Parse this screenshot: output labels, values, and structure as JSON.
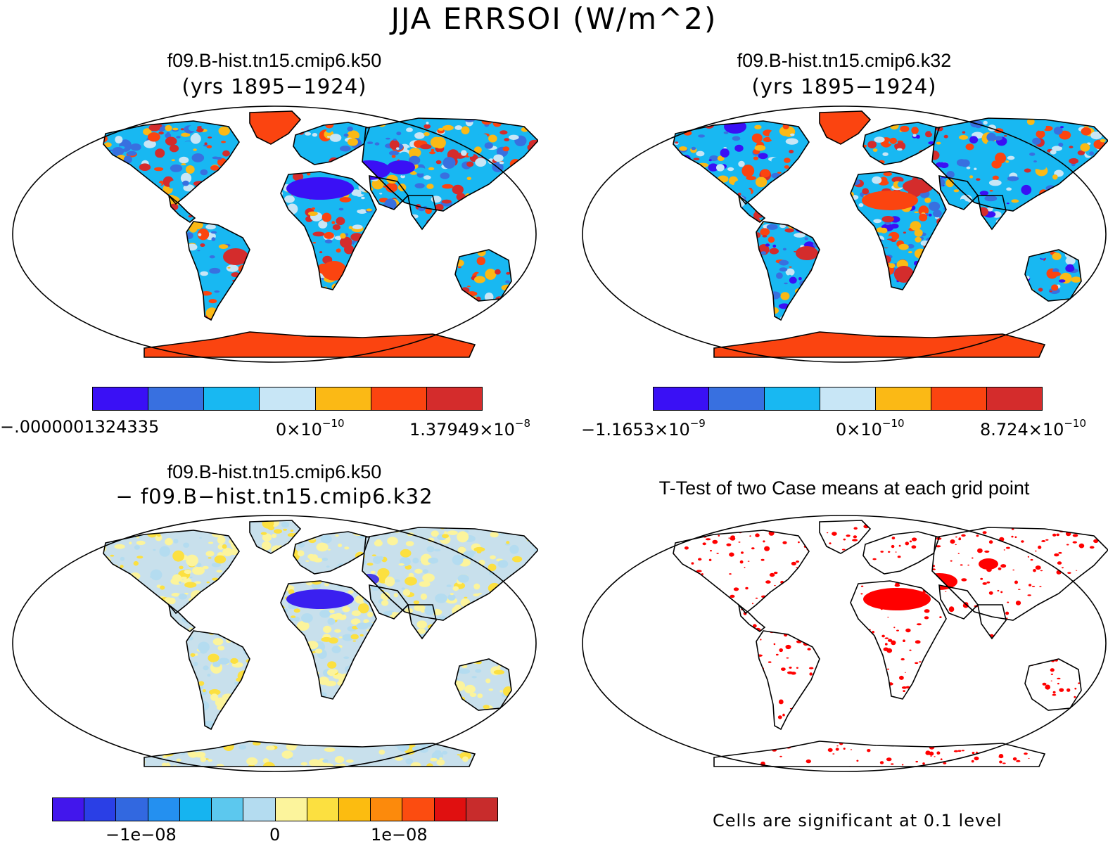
{
  "main_title": "JJA ERRSOI (W/m^2)",
  "panels": [
    {
      "title": "f09.B-hist.tn15.cmip6.k50",
      "subtitle": "(yrs 1895−1924)",
      "colorbar": [
        "#3a10f5",
        "#3870e0",
        "#18b8f2",
        "#c8e6f6",
        "#fbb915",
        "#fb4410",
        "#d42c2c"
      ],
      "ticks": {
        "left": {
          "text": "−.0000001324335"
        },
        "mid": {
          "base": "0×10",
          "exp": "−10"
        },
        "right": {
          "base": "1.37949×10",
          "exp": "−8"
        }
      }
    },
    {
      "title": "f09.B-hist.tn15.cmip6.k32",
      "subtitle": "(yrs 1895−1924)",
      "colorbar": [
        "#3a10f5",
        "#3870e0",
        "#18b8f2",
        "#c8e6f6",
        "#fbb915",
        "#fb4410",
        "#d42c2c"
      ],
      "ticks": {
        "left": {
          "base": "−1.1653×10",
          "exp": "−9"
        },
        "mid": {
          "base": "0×10",
          "exp": "−10"
        },
        "right": {
          "base": "8.724×10",
          "exp": "−10"
        }
      }
    },
    {
      "title": "f09.B-hist.tn15.cmip6.k50",
      "subtitle": "− f09.B−hist.tn15.cmip6.k32",
      "colorbar": [
        "#4216ec",
        "#2a3fe6",
        "#3268e0",
        "#2490f0",
        "#16b4f0",
        "#5cc8ee",
        "#b4dcf0",
        "#fcf49c",
        "#fce040",
        "#fcbc10",
        "#fc8a0c",
        "#fc4c10",
        "#e01010",
        "#c82c2c"
      ],
      "ticks": {
        "left": {
          "text": "−1e−08"
        },
        "mid": {
          "text": "0"
        },
        "right": {
          "text": "1e−08"
        }
      }
    },
    {
      "title": "T-Test of two Case means at each grid point",
      "footnote": "Cells are significant at 0.1 level"
    }
  ],
  "colors": {
    "land_warm": "#fb4410",
    "land_cool": "#3a10f5",
    "significant": "#ff0000",
    "diff_base": "#c8e0ec",
    "diff_pale": "#fcf49c"
  }
}
